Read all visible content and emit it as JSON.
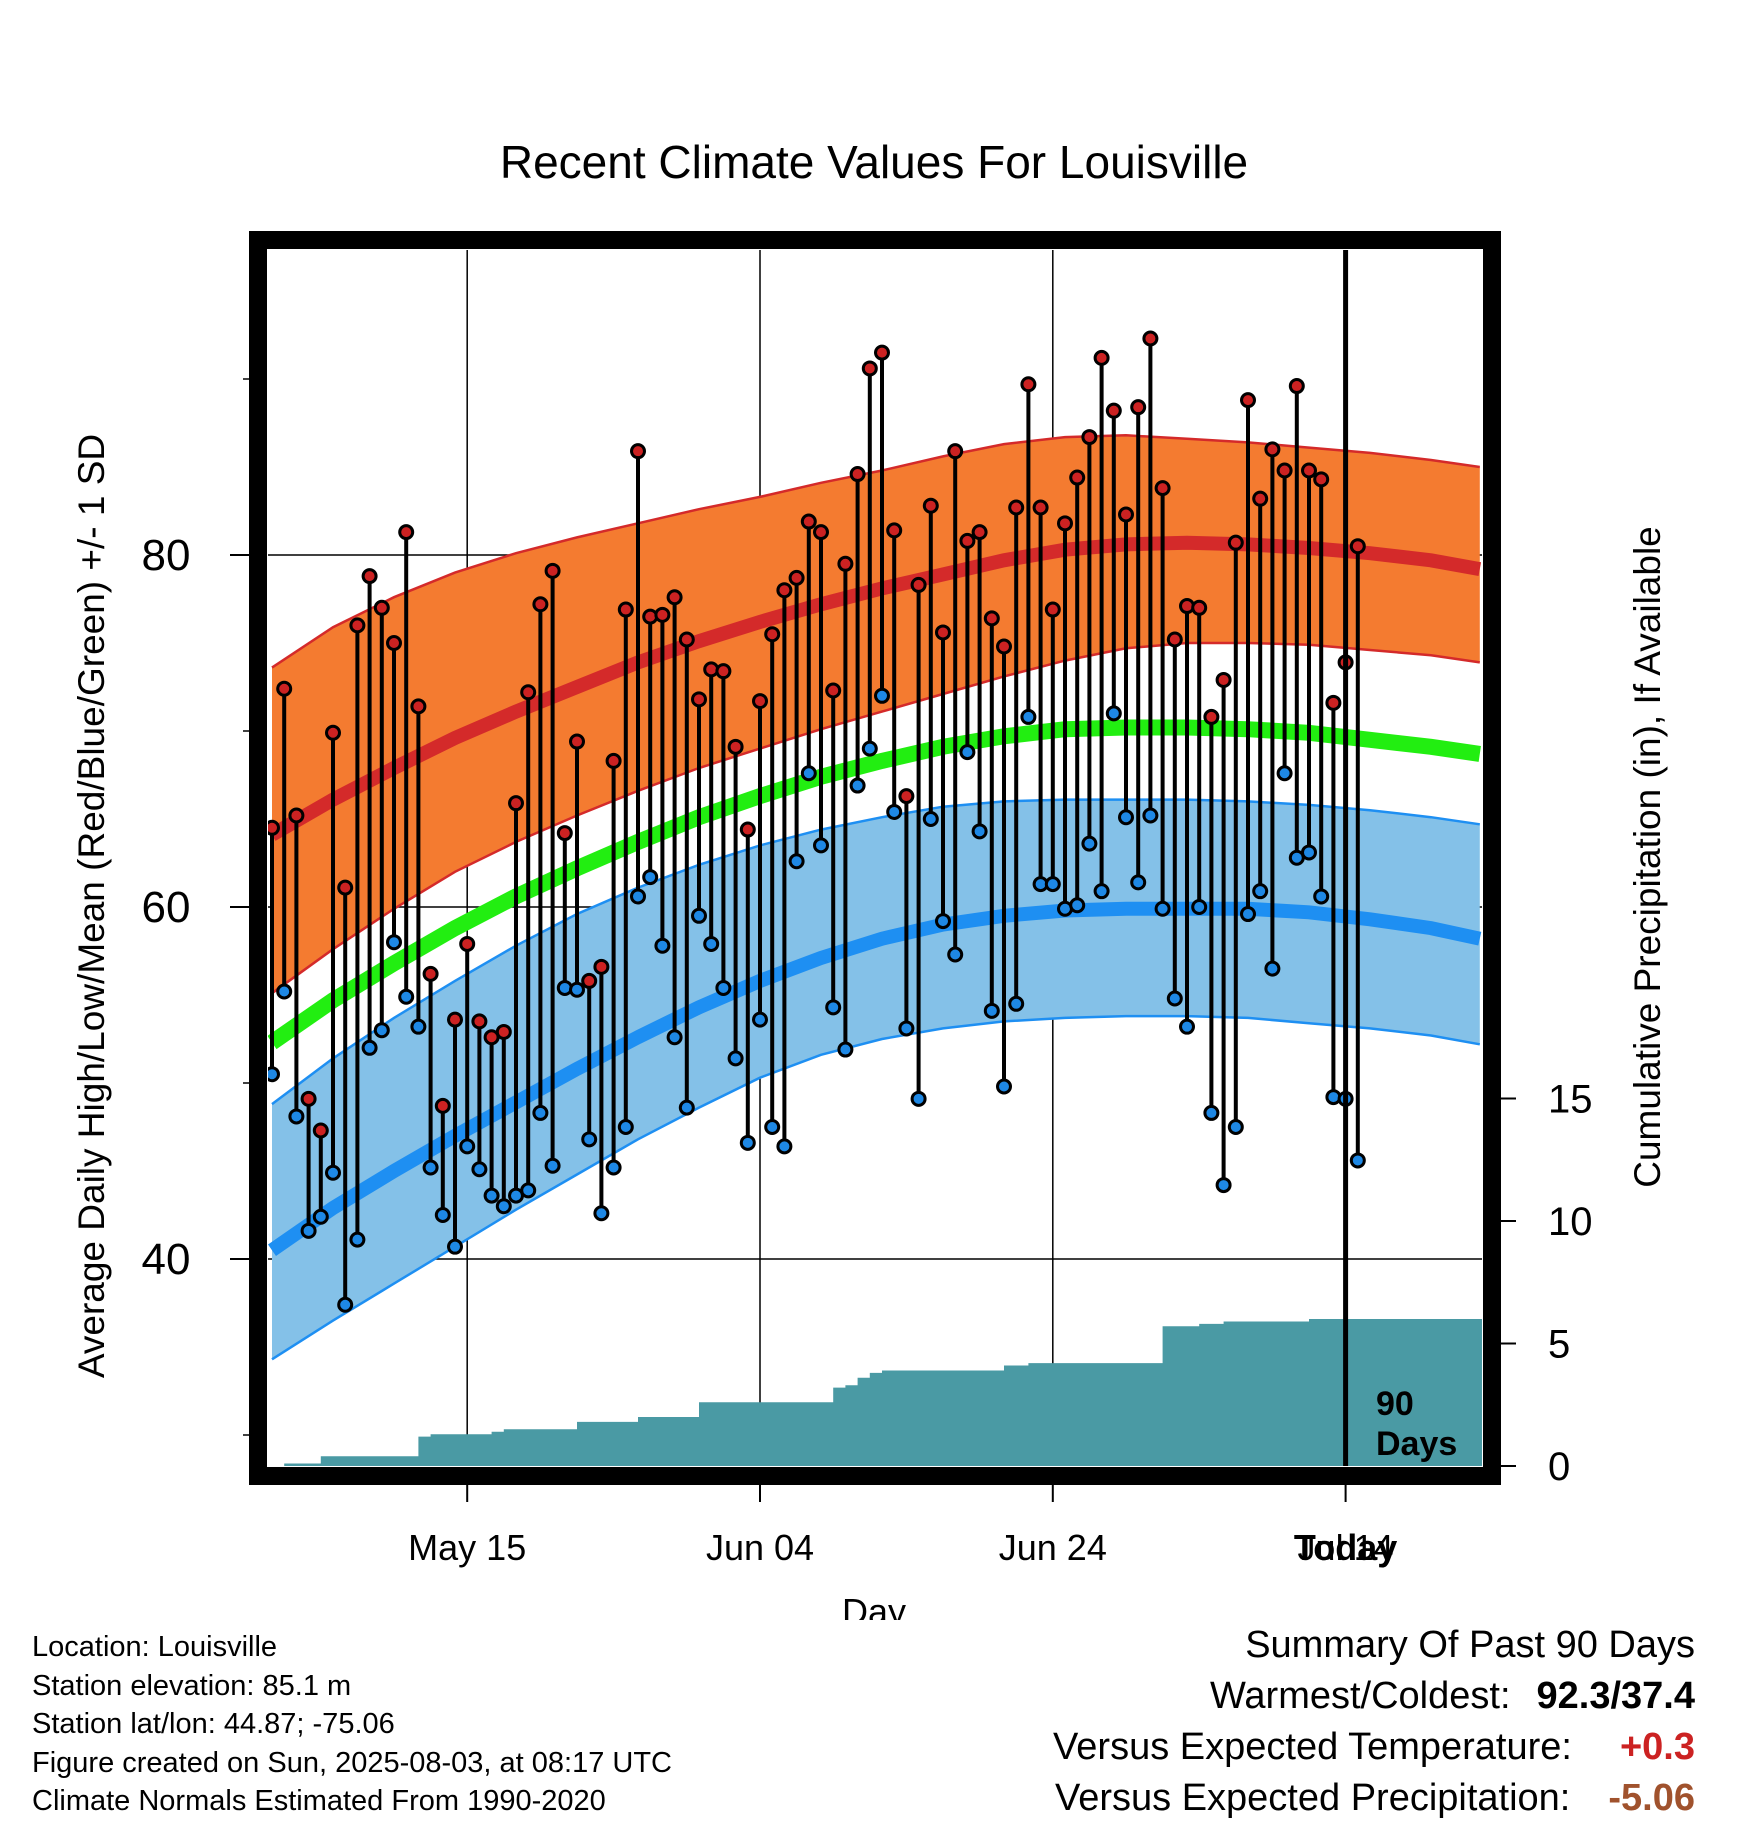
{
  "chart_data": {
    "type": "line",
    "title": "Recent Climate Values For Louisville",
    "xlabel": "Day",
    "ylabel": "Average Daily High/Low/Mean (Red/Blue/Green) +/- 1 SD",
    "y2label": "Cumulative Precipitation (in), If Available",
    "ylim": [
      28,
      98
    ],
    "y2lim": [
      0,
      53
    ],
    "yticks": [
      40,
      60,
      80
    ],
    "y2ticks": [
      0,
      5,
      10,
      15
    ],
    "xticks": [
      "May 15",
      "Jun 04",
      "Jun 24",
      "Jul 14",
      "Today"
    ],
    "today_label": "90 Days",
    "colors": {
      "high_band": "#f47b30",
      "high_line": "#d42a2a",
      "low_band": "#84c1e8",
      "low_line": "#1e8ff2",
      "mean_line": "#22ee11",
      "precip": "#4a9aa4",
      "high_dot": "#cc2222",
      "low_dot": "#1e88e5"
    },
    "series": [
      {
        "name": "Daily High",
        "values": [
          64.5,
          72.4,
          65.2,
          49.1,
          47.3,
          69.9,
          61.1,
          76.0,
          78.8,
          77.0,
          75.0,
          81.3,
          71.4,
          56.2,
          48.7,
          53.6,
          57.9,
          53.5,
          52.6,
          52.9,
          65.9,
          72.2,
          77.2,
          79.1,
          64.2,
          69.4,
          55.8,
          56.6,
          68.3,
          76.9,
          85.9,
          76.5,
          76.6,
          77.6,
          75.2,
          71.8,
          73.5,
          73.4,
          69.1,
          64.4,
          71.7,
          75.5,
          78.0,
          78.7,
          81.9,
          81.3,
          72.3,
          79.5,
          84.6,
          90.6,
          91.5,
          81.4,
          66.3,
          78.3,
          82.8,
          75.6,
          85.9,
          80.8,
          81.3,
          76.4,
          74.8,
          82.7,
          89.7,
          82.7,
          76.9,
          81.8,
          84.4,
          86.7,
          91.2,
          88.2,
          82.3,
          88.4,
          92.3,
          83.8,
          75.2,
          77.1,
          77.0,
          70.8,
          72.9,
          80.7,
          88.8,
          83.2,
          86.0,
          84.8,
          89.6,
          84.8,
          84.3,
          71.6,
          73.9,
          80.5
        ],
        "color": "#cc2222"
      },
      {
        "name": "Daily Low",
        "values": [
          50.5,
          55.2,
          48.1,
          41.6,
          42.4,
          44.9,
          37.4,
          41.1,
          52.0,
          53.0,
          58.0,
          54.9,
          53.2,
          45.2,
          42.5,
          40.7,
          46.4,
          45.1,
          43.6,
          43.0,
          43.6,
          43.9,
          48.3,
          45.3,
          55.4,
          55.3,
          46.8,
          42.6,
          45.2,
          47.5,
          60.6,
          61.7,
          57.8,
          52.6,
          48.6,
          59.5,
          57.9,
          55.4,
          51.4,
          46.6,
          53.6,
          47.5,
          46.4,
          62.6,
          67.6,
          63.5,
          54.3,
          51.9,
          66.9,
          69.0,
          72.0,
          65.4,
          53.1,
          49.1,
          65.0,
          59.2,
          57.3,
          68.8,
          64.3,
          54.1,
          49.8,
          54.5,
          70.8,
          61.3,
          61.3,
          59.9,
          60.1,
          63.6,
          60.9,
          71.0,
          65.1,
          61.4,
          65.2,
          59.9,
          54.8,
          53.2,
          60.0,
          48.3,
          44.2,
          47.5,
          59.6,
          60.9,
          56.5,
          67.6,
          62.8,
          63.1,
          60.6,
          49.2,
          49.1,
          45.6
        ],
        "color": "#1e88e5"
      },
      {
        "name": "Normal High",
        "x": [
          0,
          5,
          10,
          15,
          20,
          25,
          30,
          35,
          40,
          45,
          50,
          55,
          60,
          65,
          70,
          75,
          80,
          85,
          90,
          95,
          99
        ],
        "values": [
          64.1,
          66.1,
          67.9,
          69.6,
          71.1,
          72.5,
          73.9,
          75.1,
          76.2,
          77.2,
          78.1,
          78.9,
          79.7,
          80.3,
          80.6,
          80.7,
          80.6,
          80.4,
          80.1,
          79.7,
          79.2
        ]
      },
      {
        "name": "Normal High +1 SD",
        "x": [
          0,
          5,
          10,
          15,
          20,
          25,
          30,
          35,
          40,
          45,
          50,
          55,
          60,
          65,
          70,
          75,
          80,
          85,
          90,
          95,
          99
        ],
        "values": [
          73.6,
          75.9,
          77.6,
          79.0,
          80.1,
          81.0,
          81.8,
          82.6,
          83.3,
          84.1,
          84.8,
          85.6,
          86.3,
          86.7,
          86.8,
          86.6,
          86.4,
          86.1,
          85.8,
          85.4,
          85.0
        ]
      },
      {
        "name": "Normal High -1 SD",
        "x": [
          0,
          5,
          10,
          15,
          20,
          25,
          30,
          35,
          40,
          45,
          50,
          55,
          60,
          65,
          70,
          75,
          80,
          85,
          90,
          95,
          99
        ],
        "values": [
          55.1,
          57.6,
          59.9,
          62.0,
          63.7,
          65.2,
          66.6,
          67.9,
          69.0,
          70.1,
          71.1,
          72.1,
          73.1,
          74.0,
          74.7,
          75.0,
          75.0,
          74.9,
          74.6,
          74.3,
          73.9
        ]
      },
      {
        "name": "Normal Mean",
        "x": [
          0,
          5,
          10,
          15,
          20,
          25,
          30,
          35,
          40,
          45,
          50,
          55,
          60,
          65,
          70,
          75,
          80,
          85,
          90,
          95,
          99
        ],
        "values": [
          52.3,
          54.7,
          56.8,
          58.8,
          60.6,
          62.2,
          63.7,
          65.1,
          66.3,
          67.4,
          68.3,
          69.1,
          69.7,
          70.1,
          70.2,
          70.2,
          70.1,
          69.9,
          69.5,
          69.1,
          68.7
        ]
      },
      {
        "name": "Normal Low",
        "x": [
          0,
          5,
          10,
          15,
          20,
          25,
          30,
          35,
          40,
          45,
          50,
          55,
          60,
          65,
          70,
          75,
          80,
          85,
          90,
          95,
          99
        ],
        "values": [
          40.5,
          42.9,
          45.0,
          47.0,
          48.9,
          50.8,
          52.6,
          54.3,
          55.8,
          57.1,
          58.2,
          59.0,
          59.5,
          59.8,
          59.9,
          59.9,
          59.9,
          59.7,
          59.3,
          58.8,
          58.2
        ]
      },
      {
        "name": "Normal Low +1 SD",
        "x": [
          0,
          5,
          10,
          15,
          20,
          25,
          30,
          35,
          40,
          45,
          50,
          55,
          60,
          65,
          70,
          75,
          80,
          85,
          90,
          95,
          99
        ],
        "values": [
          48.8,
          51.4,
          53.7,
          55.8,
          57.8,
          59.6,
          61.1,
          62.4,
          63.5,
          64.4,
          65.1,
          65.7,
          66.0,
          66.1,
          66.1,
          66.1,
          66.0,
          65.8,
          65.5,
          65.1,
          64.7
        ]
      },
      {
        "name": "Normal Low -1 SD",
        "x": [
          0,
          5,
          10,
          15,
          20,
          25,
          30,
          35,
          40,
          45,
          50,
          55,
          60,
          65,
          70,
          75,
          80,
          85,
          90,
          95,
          99
        ],
        "values": [
          34.3,
          36.5,
          38.6,
          40.7,
          42.8,
          44.8,
          46.8,
          48.6,
          50.3,
          51.6,
          52.5,
          53.1,
          53.5,
          53.7,
          53.8,
          53.8,
          53.7,
          53.4,
          53.1,
          52.7,
          52.2
        ]
      },
      {
        "name": "Cumulative Precipitation",
        "x": [
          0,
          1,
          3,
          4,
          11,
          12,
          13,
          18,
          19,
          20,
          24,
          25,
          26,
          30,
          34,
          35,
          45,
          46,
          47,
          48,
          49,
          50,
          55,
          60,
          62,
          66,
          72,
          73,
          76,
          78,
          80,
          85
        ],
        "values": [
          0.0,
          0.1,
          0.1,
          0.4,
          0.4,
          1.2,
          1.3,
          1.4,
          1.5,
          1.5,
          1.5,
          1.8,
          1.8,
          2.0,
          2.0,
          2.6,
          2.6,
          3.2,
          3.3,
          3.6,
          3.8,
          3.9,
          3.9,
          4.1,
          4.2,
          4.2,
          4.2,
          5.7,
          5.8,
          5.9,
          5.9,
          6.0
        ]
      }
    ]
  },
  "footer": {
    "location": "Location: Louisville",
    "elevation": "Station elevation: 85.1 m",
    "latlon": "Station lat/lon: 44.87; -75.06",
    "created": "Figure created on Sun, 2025-08-03, at 08:17 UTC",
    "normals": "Climate Normals Estimated From 1990-2020"
  },
  "summary": {
    "title": "Summary Of Past 90 Days",
    "warmest_label": "Warmest/Coldest:",
    "warmest_value": "92.3/37.4",
    "temp_label": "Versus Expected Temperature:",
    "temp_value": "+0.3",
    "precip_label": "Versus Expected Precipitation:",
    "precip_value": "-5.06"
  }
}
